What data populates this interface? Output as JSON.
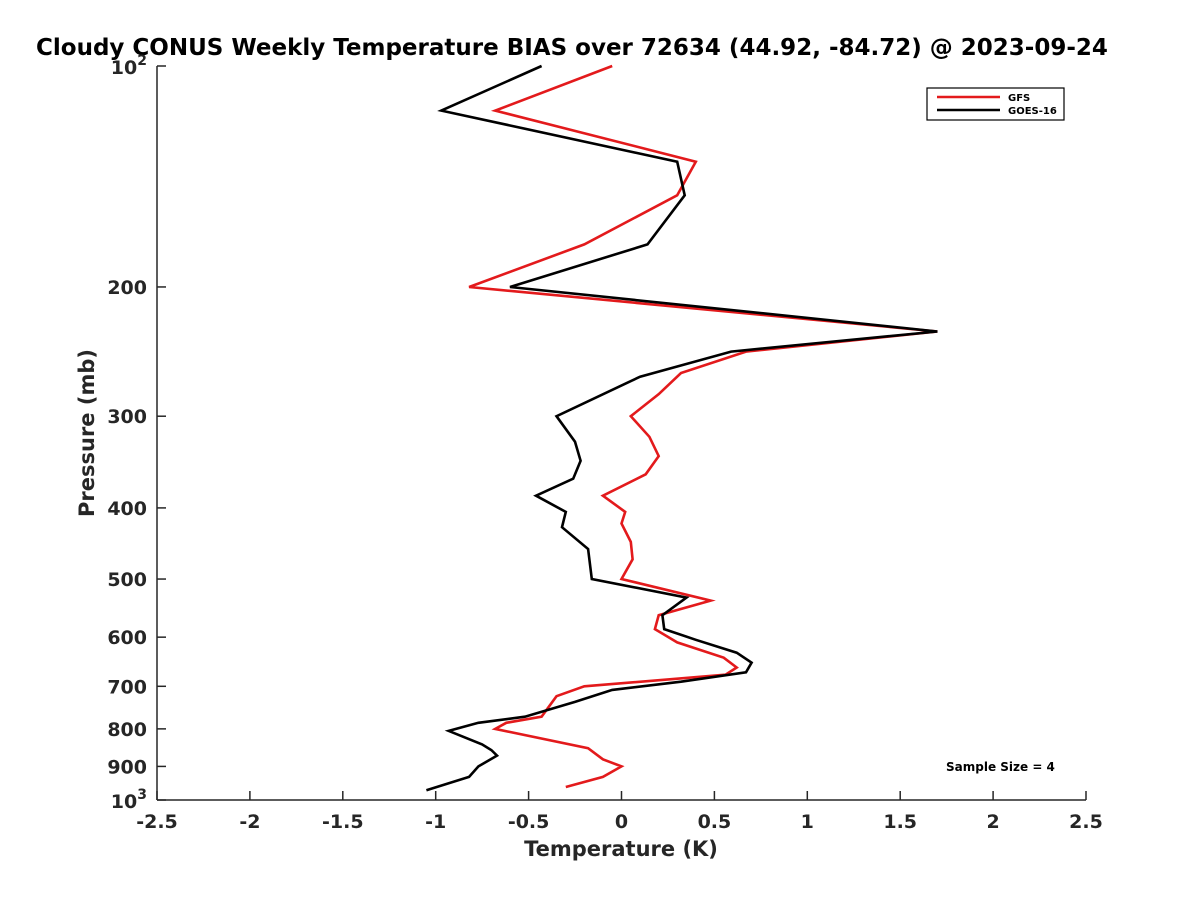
{
  "chart_data": {
    "type": "line",
    "title": "Cloudy CONUS Weekly Temperature BIAS over 72634 (44.92, -84.72) @ 2023-09-24",
    "xlabel": "Temperature (K)",
    "ylabel": "Pressure (mb)",
    "xlim": [
      -2.5,
      2.5
    ],
    "ylim": [
      100,
      1000
    ],
    "y_scale": "log",
    "y_reversed": true,
    "grid": false,
    "x_ticks": [
      -2.5,
      -2,
      -1.5,
      -1,
      -0.5,
      0,
      0.5,
      1,
      1.5,
      2,
      2.5
    ],
    "x_tick_labels": [
      "-2.5",
      "-2",
      "-1.5",
      "-1",
      "-0.5",
      "0",
      "0.5",
      "1",
      "1.5",
      "2",
      "2.5"
    ],
    "y_ticks": [
      200,
      300,
      400,
      500,
      600,
      700,
      800,
      900
    ],
    "y_tick_labels": [
      "200",
      "300",
      "400",
      "500",
      "600",
      "700",
      "800",
      "900"
    ],
    "y_decade_ticks": [
      {
        "value": 100,
        "base": "10",
        "exp": "2"
      },
      {
        "value": 1000,
        "base": "10",
        "exp": "3"
      }
    ],
    "legend_position": "top-right",
    "annotation": "Sample Size = 4",
    "series": [
      {
        "name": "GFS",
        "color": "#e31a1c",
        "x": [
          -0.05,
          -0.68,
          0.4,
          0.3,
          -0.2,
          -0.82,
          1.7,
          0.67,
          0.32,
          0.2,
          0.05,
          0.15,
          0.2,
          0.13,
          -0.1,
          0.02,
          0.0,
          0.05,
          0.06,
          0.0,
          0.48,
          0.2,
          0.18,
          0.3,
          0.55,
          0.62,
          0.56,
          -0.2,
          -0.35,
          -0.43,
          -0.62,
          -0.68,
          -0.18,
          -0.1,
          0.0,
          -0.1,
          -0.3
        ],
        "y": [
          100,
          115,
          135,
          150,
          175,
          200,
          230,
          245,
          262,
          280,
          300,
          320,
          340,
          360,
          385,
          405,
          420,
          445,
          470,
          500,
          535,
          560,
          585,
          610,
          640,
          660,
          675,
          700,
          722,
          770,
          785,
          800,
          850,
          880,
          900,
          930,
          960
        ]
      },
      {
        "name": "GOES-16",
        "color": "#000000",
        "x": [
          -0.43,
          -0.97,
          0.3,
          0.34,
          0.14,
          -0.6,
          1.7,
          0.59,
          0.1,
          -0.35,
          -0.25,
          -0.22,
          -0.26,
          -0.46,
          -0.3,
          -0.32,
          -0.18,
          -0.16,
          0.35,
          0.22,
          0.23,
          0.4,
          0.62,
          0.7,
          0.67,
          0.32,
          -0.05,
          -0.25,
          -0.52,
          -0.77,
          -0.93,
          -0.75,
          -0.7,
          -0.67,
          -0.77,
          -0.82,
          -1.05
        ],
        "y": [
          100,
          115,
          135,
          150,
          175,
          200,
          230,
          245,
          265,
          300,
          325,
          345,
          365,
          385,
          405,
          425,
          455,
          500,
          530,
          560,
          585,
          605,
          630,
          650,
          670,
          690,
          708,
          735,
          770,
          785,
          805,
          840,
          855,
          870,
          900,
          930,
          970
        ]
      }
    ]
  }
}
